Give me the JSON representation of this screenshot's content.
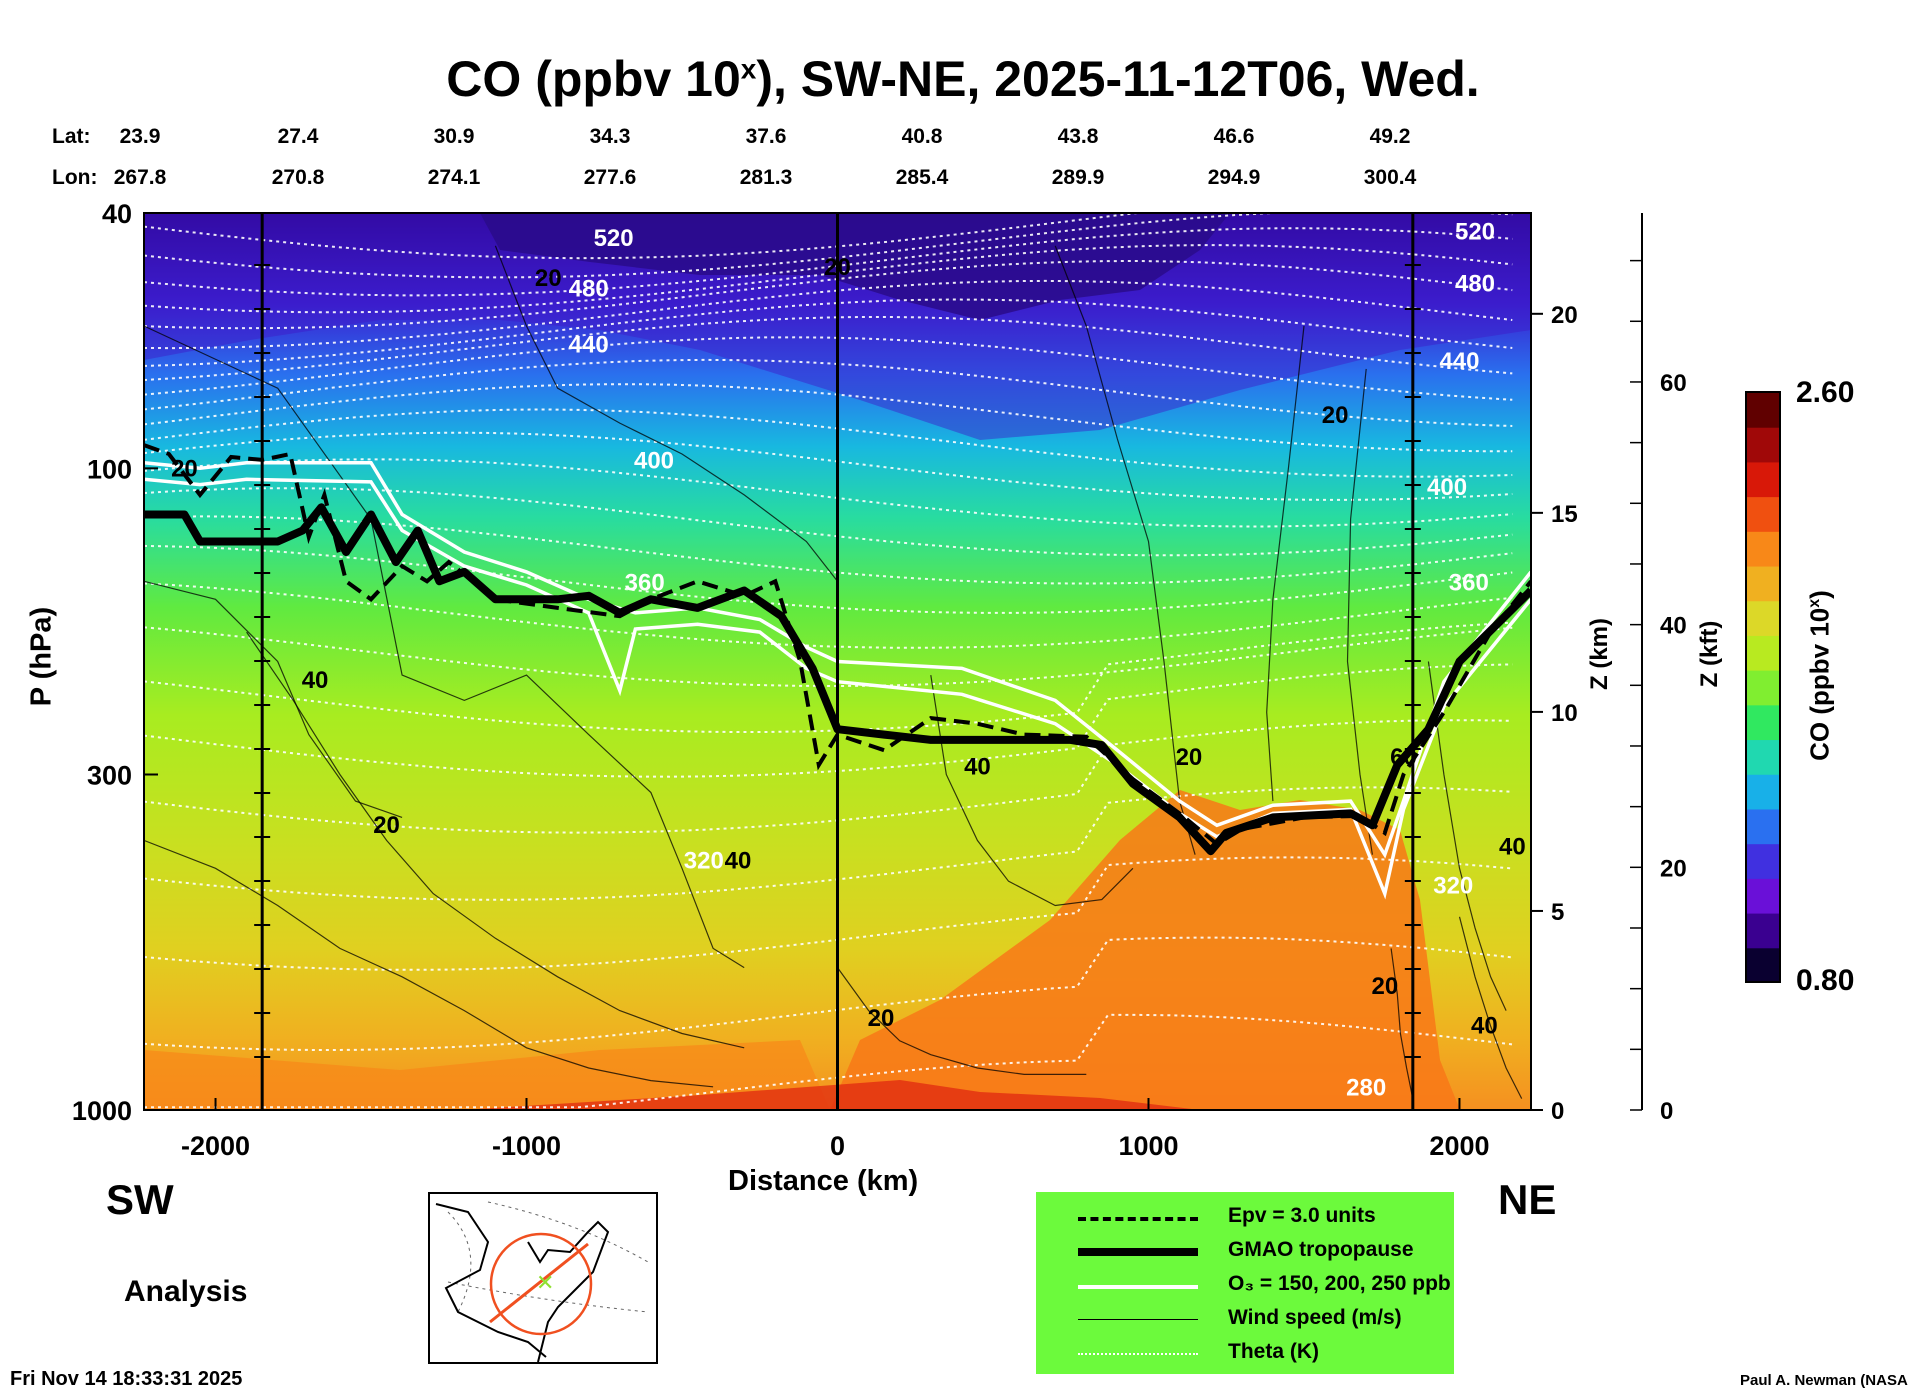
{
  "title": {
    "main_before": "CO (ppbv 10",
    "main_sup": "x",
    "main_after": "), SW-NE, 2025-11-12T06, Wed."
  },
  "coords": {
    "lat_label": "Lat:",
    "lon_label": "Lon:",
    "lat": [
      "23.9",
      "27.4",
      "30.9",
      "34.3",
      "37.6",
      "40.8",
      "43.8",
      "46.6",
      "49.2"
    ],
    "lon": [
      "267.8",
      "270.8",
      "274.1",
      "277.6",
      "281.3",
      "285.4",
      "289.9",
      "294.9",
      "300.4"
    ]
  },
  "labels": {
    "sw": "SW",
    "ne": "NE",
    "analysis": "Analysis",
    "timestamp": "Fri Nov 14 18:33:31 2025",
    "credit": "Paul A. Newman (NASA"
  },
  "legend": {
    "epv": "Epv = 3.0 units",
    "tropopause": "GMAO tropopause",
    "ozone": "O₃ = 150, 200, 250 ppb",
    "wind": "Wind speed (m/s)",
    "theta": "Theta (K)"
  },
  "colorbar": {
    "max_label": "2.60",
    "min_label": "0.80",
    "title_before": "CO (ppbv 10",
    "title_sup": "x",
    "title_after": ")",
    "colors": [
      "#0a0030",
      "#3a0090",
      "#6a10d8",
      "#4030e0",
      "#2a70f0",
      "#18b0e8",
      "#20d8b0",
      "#30e860",
      "#80ee30",
      "#b8ea20",
      "#dcd828",
      "#f0b020",
      "#f88818",
      "#f05010",
      "#d81808",
      "#a00808",
      "#600000"
    ]
  },
  "chart_data": {
    "type": "heatmap",
    "xlabel": "Distance (km)",
    "ylabel": "P (hPa)",
    "xlim": [
      -2230,
      2230
    ],
    "ylim_hpa": [
      1000,
      40
    ],
    "y_scale": "log",
    "x_ticks": [
      "-2000",
      "-1000",
      "0",
      "1000",
      "2000"
    ],
    "x_tick_values": [
      -2000,
      -1000,
      0,
      1000,
      2000
    ],
    "p_ticks": [
      "40",
      "100",
      "300",
      "1000"
    ],
    "p_tick_values": [
      40,
      100,
      300,
      1000
    ],
    "z_km_label": "Z (km)",
    "z_km_ticks": [
      "0",
      "5",
      "10",
      "15",
      "20"
    ],
    "z_km_values": [
      0,
      5,
      10,
      15,
      20
    ],
    "z_kft_label": "Z (kft)",
    "z_kft_ticks": [
      "0",
      "20",
      "40",
      "60"
    ],
    "z_kft_values": [
      0,
      20,
      40,
      60
    ],
    "color_range": [
      0.8,
      2.6
    ],
    "vertical_markers_km": [
      -1850,
      0,
      1850
    ],
    "theta_labels": [
      {
        "text": "520",
        "x": -720,
        "p": 45
      },
      {
        "text": "480",
        "x": -800,
        "p": 54
      },
      {
        "text": "440",
        "x": -800,
        "p": 66
      },
      {
        "text": "400",
        "x": -590,
        "p": 100
      },
      {
        "text": "360",
        "x": -620,
        "p": 155
      },
      {
        "text": "320",
        "x": -430,
        "p": 420
      },
      {
        "text": "280",
        "x": 1700,
        "p": 950
      },
      {
        "text": "520",
        "x": 2050,
        "p": 44
      },
      {
        "text": "480",
        "x": 2050,
        "p": 53
      },
      {
        "text": "440",
        "x": 2000,
        "p": 70
      },
      {
        "text": "400",
        "x": 1960,
        "p": 110
      },
      {
        "text": "360",
        "x": 2030,
        "p": 155
      },
      {
        "text": "320",
        "x": 1980,
        "p": 460
      }
    ],
    "wind_labels": [
      {
        "text": "20",
        "x": -2100,
        "p": 103
      },
      {
        "text": "40",
        "x": -1680,
        "p": 220
      },
      {
        "text": "20",
        "x": -1450,
        "p": 370
      },
      {
        "text": "40",
        "x": -320,
        "p": 420
      },
      {
        "text": "20",
        "x": -930,
        "p": 52
      },
      {
        "text": "20",
        "x": 0,
        "p": 50
      },
      {
        "text": "20",
        "x": 1600,
        "p": 85
      },
      {
        "text": "40",
        "x": 450,
        "p": 300
      },
      {
        "text": "20",
        "x": 1130,
        "p": 290
      },
      {
        "text": "20",
        "x": 140,
        "p": 740
      },
      {
        "text": "60",
        "x": 1820,
        "p": 290
      },
      {
        "text": "40",
        "x": 2170,
        "p": 400
      },
      {
        "text": "20",
        "x": 1760,
        "p": 660
      },
      {
        "text": "40",
        "x": 2080,
        "p": 760
      }
    ],
    "tropopause_hpa": [
      [
        -2230,
        118
      ],
      [
        -2100,
        118
      ],
      [
        -2050,
        130
      ],
      [
        -1800,
        130
      ],
      [
        -1720,
        125
      ],
      [
        -1660,
        115
      ],
      [
        -1580,
        135
      ],
      [
        -1500,
        118
      ],
      [
        -1420,
        140
      ],
      [
        -1350,
        125
      ],
      [
        -1280,
        150
      ],
      [
        -1200,
        145
      ],
      [
        -1100,
        160
      ],
      [
        -900,
        160
      ],
      [
        -800,
        158
      ],
      [
        -700,
        168
      ],
      [
        -600,
        160
      ],
      [
        -450,
        165
      ],
      [
        -300,
        155
      ],
      [
        -180,
        170
      ],
      [
        -80,
        205
      ],
      [
        0,
        255
      ],
      [
        150,
        260
      ],
      [
        300,
        265
      ],
      [
        750,
        265
      ],
      [
        850,
        270
      ],
      [
        950,
        310
      ],
      [
        1100,
        350
      ],
      [
        1200,
        395
      ],
      [
        1250,
        370
      ],
      [
        1400,
        350
      ],
      [
        1650,
        345
      ],
      [
        1720,
        360
      ],
      [
        1800,
        290
      ],
      [
        1900,
        255
      ],
      [
        2000,
        200
      ],
      [
        2230,
        155
      ]
    ],
    "epv_hpa": [
      [
        -2230,
        92
      ],
      [
        -2150,
        95
      ],
      [
        -2050,
        110
      ],
      [
        -1950,
        96
      ],
      [
        -1850,
        97
      ],
      [
        -1760,
        95
      ],
      [
        -1700,
        128
      ],
      [
        -1650,
        110
      ],
      [
        -1580,
        150
      ],
      [
        -1500,
        160
      ],
      [
        -1400,
        142
      ],
      [
        -1320,
        150
      ],
      [
        -1250,
        140
      ],
      [
        -1100,
        160
      ],
      [
        -900,
        165
      ],
      [
        -700,
        170
      ],
      [
        -600,
        160
      ],
      [
        -450,
        150
      ],
      [
        -300,
        158
      ],
      [
        -200,
        150
      ],
      [
        -120,
        200
      ],
      [
        -60,
        290
      ],
      [
        0,
        260
      ],
      [
        150,
        275
      ],
      [
        300,
        245
      ],
      [
        450,
        250
      ],
      [
        600,
        260
      ],
      [
        800,
        262
      ],
      [
        950,
        305
      ],
      [
        1100,
        345
      ],
      [
        1220,
        385
      ],
      [
        1300,
        365
      ],
      [
        1500,
        350
      ],
      [
        1680,
        348
      ],
      [
        1760,
        370
      ],
      [
        1820,
        300
      ],
      [
        1950,
        240
      ],
      [
        2100,
        180
      ],
      [
        2230,
        150
      ]
    ],
    "ozone_hpa": [
      [
        [
          -2230,
          98
        ],
        [
          -2050,
          100
        ],
        [
          -1900,
          98
        ],
        [
          -1500,
          98
        ],
        [
          -1400,
          118
        ],
        [
          -1200,
          135
        ],
        [
          -1000,
          145
        ],
        [
          -800,
          160
        ],
        [
          -650,
          168
        ],
        [
          -450,
          165
        ],
        [
          -250,
          172
        ],
        [
          -100,
          190
        ],
        [
          0,
          200
        ],
        [
          400,
          205
        ],
        [
          700,
          230
        ],
        [
          900,
          275
        ],
        [
          1100,
          330
        ],
        [
          1220,
          360
        ],
        [
          1400,
          335
        ],
        [
          1650,
          330
        ],
        [
          1760,
          400
        ],
        [
          1820,
          330
        ],
        [
          1950,
          215
        ],
        [
          2230,
          145
        ]
      ],
      [
        [
          -2230,
          104
        ],
        [
          -2050,
          106
        ],
        [
          -1900,
          104
        ],
        [
          -1500,
          105
        ],
        [
          -1400,
          125
        ],
        [
          -1200,
          142
        ],
        [
          -1000,
          152
        ],
        [
          -800,
          168
        ],
        [
          -700,
          222
        ],
        [
          -650,
          178
        ],
        [
          -450,
          175
        ],
        [
          -250,
          180
        ],
        [
          -100,
          205
        ],
        [
          0,
          215
        ],
        [
          400,
          225
        ],
        [
          700,
          250
        ],
        [
          900,
          290
        ],
        [
          1100,
          345
        ],
        [
          1220,
          375
        ],
        [
          1400,
          345
        ],
        [
          1650,
          340
        ],
        [
          1760,
          460
        ],
        [
          1820,
          340
        ],
        [
          1950,
          235
        ],
        [
          2230,
          160
        ]
      ]
    ]
  }
}
